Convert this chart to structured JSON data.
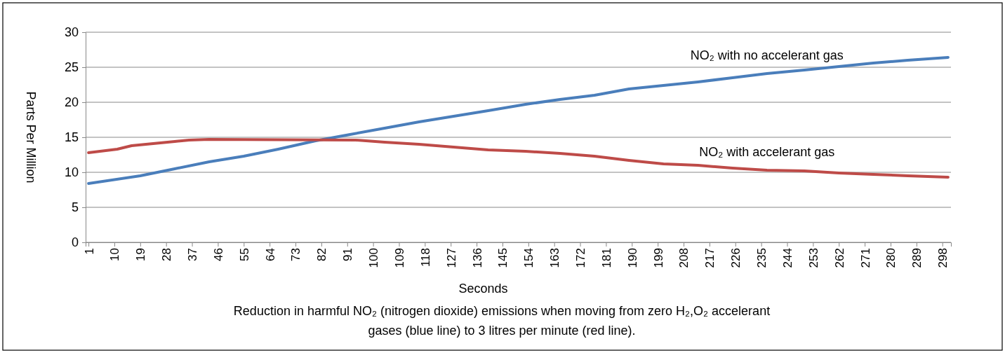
{
  "chart_data": {
    "type": "line",
    "title": "Reduction in harmful NO₂ (nitrogen dioxide) emissions when moving from zero H₂,O₂ accelerant gases (blue line) to 3 litres per minute (red line).",
    "xlabel": "Seconds",
    "ylabel": "Parts  Per Million",
    "xlim": [
      0,
      301
    ],
    "xticks": [
      1,
      10,
      19,
      28,
      37,
      46,
      55,
      64,
      73,
      82,
      91,
      100,
      109,
      118,
      127,
      136,
      145,
      154,
      163,
      172,
      181,
      190,
      199,
      208,
      217,
      226,
      235,
      244,
      253,
      262,
      271,
      280,
      289,
      298
    ],
    "ylim": [
      0,
      30
    ],
    "yticks": [
      0,
      5,
      10,
      15,
      20,
      25,
      30
    ],
    "grid": "y",
    "marker": "none",
    "line_style": "solid",
    "series": [
      {
        "name": "NO₂ with no accelerant gas",
        "color": "#4a7ebb",
        "x": [
          1,
          19,
          31,
          43,
          55,
          67,
          80,
          92,
          104,
          116,
          128,
          140,
          153,
          165,
          177,
          189,
          201,
          213,
          225,
          237,
          250,
          262,
          274,
          286,
          300
        ],
        "values": [
          8.4,
          9.5,
          10.5,
          11.5,
          12.3,
          13.3,
          14.5,
          15.4,
          16.3,
          17.2,
          18.0,
          18.8,
          19.7,
          20.4,
          21.0,
          21.9,
          22.4,
          22.9,
          23.5,
          24.1,
          24.6,
          25.1,
          25.6,
          26.0,
          26.4
        ]
      },
      {
        "name": "NO₂ with accelerant gas",
        "color": "#be4b48",
        "x": [
          1,
          7,
          11,
          16,
          21,
          31,
          36,
          43,
          94,
          104,
          116,
          128,
          140,
          153,
          165,
          177,
          189,
          201,
          213,
          225,
          237,
          250,
          262,
          274,
          286,
          300
        ],
        "values": [
          12.8,
          13.1,
          13.3,
          13.8,
          14.0,
          14.4,
          14.6,
          14.7,
          14.6,
          14.3,
          14.0,
          13.6,
          13.2,
          13.0,
          12.7,
          12.3,
          11.7,
          11.2,
          11.0,
          10.6,
          10.3,
          10.2,
          9.9,
          9.7,
          9.5,
          9.3
        ]
      }
    ]
  }
}
